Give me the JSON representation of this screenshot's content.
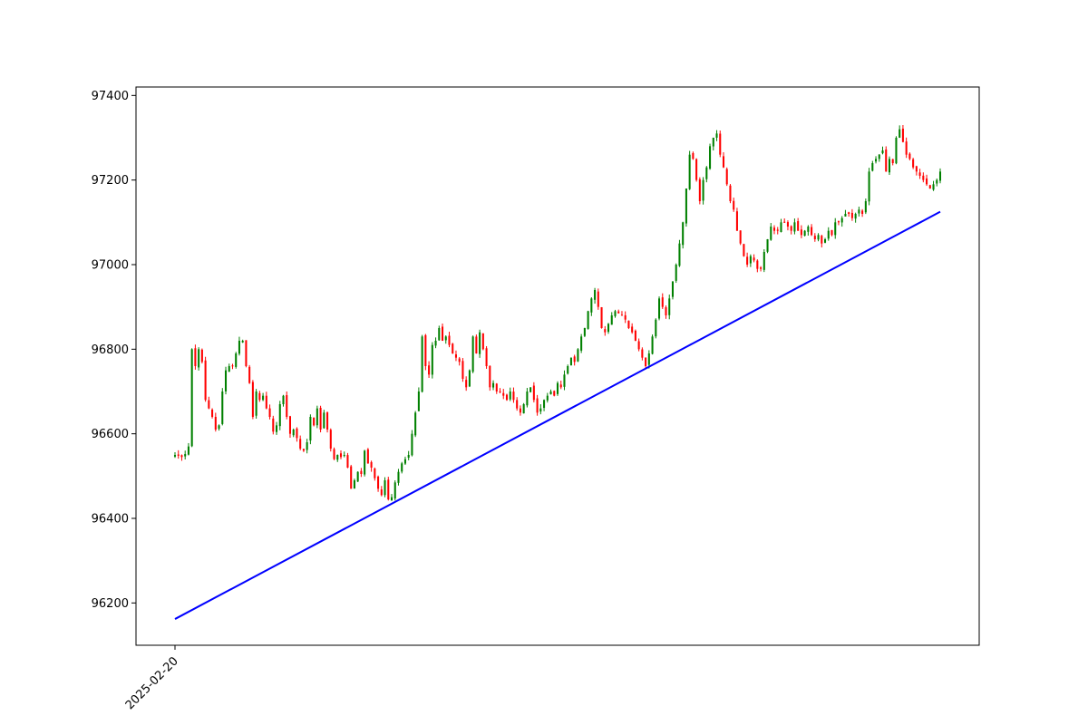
{
  "chart_data": {
    "type": "candlestick",
    "title": "",
    "xlabel": "",
    "ylabel": "",
    "x_tick_labels": [
      "2025-02-20"
    ],
    "ylim": [
      96100,
      97420
    ],
    "y_ticks": [
      96200,
      96400,
      96600,
      96800,
      97000,
      97200,
      97400
    ],
    "grid": false,
    "legend": "none",
    "colors": {
      "up": "#008000",
      "down": "#ff0000",
      "trend": "#0000ff"
    },
    "trend_line": {
      "start_value": 96162,
      "end_value": 97125
    },
    "close_path": [
      96550,
      96548,
      96545,
      96552,
      96570,
      96800,
      96760,
      96800,
      96770,
      96680,
      96660,
      96640,
      96610,
      96620,
      96700,
      96750,
      96760,
      96760,
      96790,
      96820,
      96820,
      96760,
      96720,
      96640,
      96700,
      96680,
      96690,
      96660,
      96640,
      96605,
      96620,
      96670,
      96690,
      96640,
      96600,
      96610,
      96590,
      96565,
      96560,
      96580,
      96640,
      96620,
      96660,
      96610,
      96650,
      96610,
      96565,
      96540,
      96550,
      96545,
      96550,
      96520,
      96470,
      96490,
      96510,
      96505,
      96560,
      96530,
      96520,
      96495,
      96470,
      96455,
      96490,
      96445,
      96450,
      96485,
      96510,
      96530,
      96540,
      96550,
      96600,
      96650,
      96700,
      96830,
      96760,
      96740,
      96810,
      96820,
      96850,
      96820,
      96830,
      96810,
      96790,
      96780,
      96770,
      96730,
      96710,
      96750,
      96830,
      96790,
      96840,
      96800,
      96760,
      96710,
      96720,
      96700,
      96700,
      96690,
      96680,
      96700,
      96680,
      96660,
      96650,
      96670,
      96700,
      96710,
      96680,
      96650,
      96660,
      96680,
      96690,
      96700,
      96690,
      96720,
      96710,
      96740,
      96760,
      96780,
      96770,
      96800,
      96830,
      96850,
      96890,
      96920,
      96940,
      96900,
      96850,
      96840,
      96860,
      96880,
      96890,
      96885,
      96880,
      96870,
      96850,
      96840,
      96820,
      96800,
      96780,
      96760,
      96790,
      96830,
      96870,
      96920,
      96900,
      96880,
      96920,
      96960,
      97000,
      97050,
      97100,
      97180,
      97260,
      97250,
      97200,
      97150,
      97200,
      97230,
      97280,
      97300,
      97310,
      97260,
      97230,
      97190,
      97150,
      97130,
      97080,
      97050,
      97020,
      97000,
      97020,
      97010,
      96990,
      96990,
      97030,
      97060,
      97090,
      97080,
      97080,
      97100,
      97100,
      97090,
      97080,
      97100,
      97080,
      97070,
      97080,
      97090,
      97070,
      97060,
      97070,
      97050,
      97060,
      97080,
      97070,
      97100,
      97100,
      97110,
      97120,
      97120,
      97110,
      97120,
      97130,
      97120,
      97150,
      97220,
      97240,
      97250,
      97260,
      97270,
      97220,
      97250,
      97240,
      97300,
      97320,
      97290,
      97260,
      97250,
      97230,
      97220,
      97210,
      97200,
      97190,
      97180,
      97190,
      97200,
      97220
    ]
  }
}
